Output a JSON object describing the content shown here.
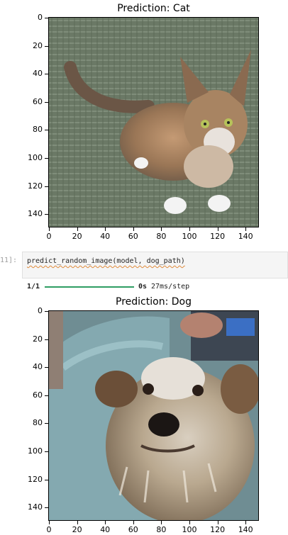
{
  "plot1": {
    "title": "Prediction: Cat",
    "yticks": [
      "0",
      "20",
      "40",
      "60",
      "80",
      "100",
      "120",
      "140"
    ],
    "xticks": [
      "0",
      "20",
      "40",
      "60",
      "80",
      "100",
      "120",
      "140"
    ]
  },
  "cell": {
    "prompt": "11]:",
    "code": "predict_random_image(model, dog_path)"
  },
  "progress": {
    "step": "1/1",
    "time": "0s",
    "rate": "27ms/step",
    "fraction": 1.0
  },
  "plot2": {
    "title": "Prediction: Dog",
    "yticks": [
      "0",
      "20",
      "40",
      "60",
      "80",
      "100",
      "120",
      "140"
    ],
    "xticks": [
      "0",
      "20",
      "40",
      "60",
      "80",
      "100",
      "120",
      "140"
    ]
  },
  "colors": {
    "progress_bar": "#2e9d63",
    "cell_bg": "#f5f5f5",
    "prompt": "#9e9e9e"
  }
}
